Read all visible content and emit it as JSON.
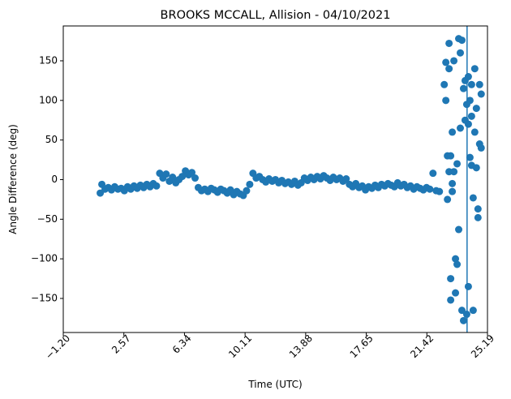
{
  "chart_data": {
    "type": "scatter",
    "title": "BROOKS MCCALL, Allision - 04/10/2021",
    "x_label": "Time (UTC)",
    "y_label": "Angle Difference (deg)",
    "color": "#1f77b4",
    "xlim": [
      -1.2,
      25.19
    ],
    "ylim": [
      -193,
      194
    ],
    "xticks": [
      {
        "value": -1.2,
        "label": "−1.20"
      },
      2.57,
      6.34,
      10.11,
      13.88,
      17.65,
      21.42,
      25.19
    ],
    "yticks": [
      {
        "value": -150,
        "label": "−150"
      },
      {
        "value": -100,
        "label": "−100"
      },
      {
        "value": -50,
        "label": "−50"
      },
      0,
      50,
      100,
      150
    ],
    "vline": 23.92,
    "x": [
      1.1,
      1.2,
      1.4,
      1.6,
      1.8,
      2.0,
      2.2,
      2.4,
      2.6,
      2.8,
      3.0,
      3.2,
      3.4,
      3.6,
      3.8,
      4.0,
      4.2,
      4.4,
      4.6,
      4.8,
      5.0,
      5.2,
      5.4,
      5.6,
      5.8,
      6.0,
      6.2,
      6.4,
      6.6,
      6.8,
      7.0,
      7.2,
      7.4,
      7.6,
      7.8,
      8.0,
      8.2,
      8.4,
      8.6,
      8.8,
      9.0,
      9.2,
      9.4,
      9.6,
      9.8,
      10.0,
      10.2,
      10.4,
      10.6,
      10.8,
      11.0,
      11.2,
      11.4,
      11.6,
      11.8,
      12.0,
      12.2,
      12.4,
      12.6,
      12.8,
      13.0,
      13.2,
      13.4,
      13.6,
      13.8,
      14.0,
      14.2,
      14.4,
      14.6,
      14.8,
      15.0,
      15.2,
      15.4,
      15.6,
      15.8,
      16.0,
      16.2,
      16.4,
      16.6,
      16.8,
      17.0,
      17.2,
      17.4,
      17.6,
      17.8,
      18.0,
      18.2,
      18.4,
      18.6,
      18.8,
      19.0,
      19.2,
      19.4,
      19.6,
      19.8,
      20.0,
      20.2,
      20.4,
      20.6,
      20.8,
      21.0,
      21.2,
      21.4,
      21.6,
      21.8,
      22.0,
      22.2,
      22.5,
      22.6,
      22.6,
      22.7,
      22.7,
      22.8,
      22.8,
      22.9,
      22.9,
      22.9,
      23.0,
      23.0,
      23.1,
      23.1,
      23.2,
      23.2,
      23.3,
      23.4,
      23.4,
      23.5,
      23.5,
      23.6,
      23.6,
      23.7,
      23.7,
      23.8,
      23.8,
      23.9,
      24.0,
      24.0,
      24.1,
      24.1,
      24.2,
      24.2,
      24.3,
      24.3,
      24.4,
      24.4,
      24.5,
      24.5,
      24.6,
      24.6,
      24.7,
      24.7,
      24.8,
      24.8,
      23.3,
      22.8,
      23.0,
      24.0,
      23.9,
      24.2
    ],
    "values": [
      -17,
      -6,
      -12,
      -10,
      -13,
      -9,
      -12,
      -11,
      -14,
      -9,
      -12,
      -8,
      -11,
      -7,
      -10,
      -6,
      -9,
      -5,
      -8,
      8,
      2,
      7,
      -2,
      3,
      -4,
      0,
      4,
      11,
      6,
      9,
      2,
      -10,
      -14,
      -12,
      -15,
      -11,
      -13,
      -16,
      -12,
      -14,
      -17,
      -13,
      -19,
      -15,
      -18,
      -20,
      -14,
      -6,
      8,
      2,
      4,
      0,
      -3,
      1,
      -2,
      0,
      -4,
      -1,
      -5,
      -3,
      -6,
      -2,
      -7,
      -4,
      2,
      -1,
      3,
      0,
      4,
      1,
      5,
      2,
      -1,
      3,
      0,
      2,
      -2,
      1,
      -6,
      -9,
      -5,
      -10,
      -8,
      -13,
      -9,
      -11,
      -7,
      -10,
      -6,
      -8,
      -5,
      -7,
      -9,
      -4,
      -8,
      -6,
      -10,
      -8,
      -12,
      -9,
      -11,
      -13,
      -10,
      -12,
      8,
      -14,
      -15,
      120,
      148,
      100,
      30,
      -25,
      172,
      140,
      30,
      -152,
      -125,
      60,
      -15,
      10,
      150,
      -143,
      -100,
      -107,
      -63,
      178,
      160,
      65,
      -165,
      176,
      -178,
      115,
      75,
      125,
      -170,
      130,
      -135,
      28,
      100,
      18,
      120,
      -165,
      -23,
      60,
      140,
      90,
      15,
      -48,
      -37,
      45,
      120,
      108,
      40,
      20,
      10,
      -5,
      70,
      95,
      80
    ]
  }
}
